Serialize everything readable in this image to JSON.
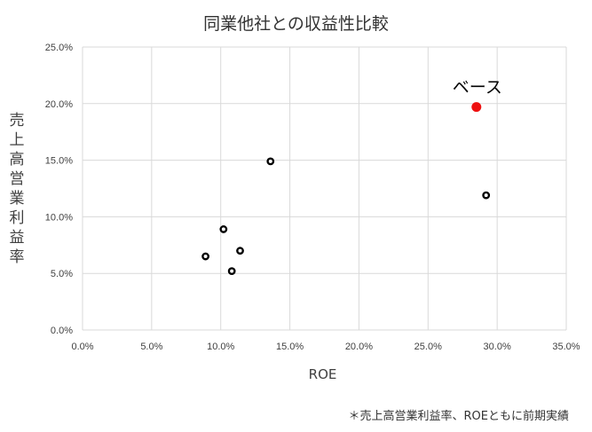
{
  "chart_data": {
    "type": "scatter",
    "title": "同業他社との収益性比較",
    "xlabel": "ROE",
    "ylabel": "売上高営業利益率",
    "xlim": [
      0,
      35
    ],
    "ylim": [
      0,
      25
    ],
    "xticks": [
      0,
      5,
      10,
      15,
      20,
      25,
      30,
      35
    ],
    "yticks": [
      0,
      5,
      10,
      15,
      20,
      25
    ],
    "xtick_labels": [
      "0.0%",
      "5.0%",
      "10.0%",
      "15.0%",
      "20.0%",
      "25.0%",
      "30.0%",
      "35.0%"
    ],
    "ytick_labels": [
      "0.0%",
      "5.0%",
      "10.0%",
      "15.0%",
      "20.0%",
      "25.0%"
    ],
    "grid": true,
    "series": [
      {
        "points": [
          {
            "x": 8.9,
            "y": 6.5
          },
          {
            "x": 10.2,
            "y": 8.9
          },
          {
            "x": 10.8,
            "y": 5.2
          },
          {
            "x": 11.4,
            "y": 7.0
          },
          {
            "x": 13.6,
            "y": 14.9
          },
          {
            "x": 29.2,
            "y": 11.9
          }
        ],
        "color": "#000000"
      },
      {
        "points": [
          {
            "x": 28.5,
            "y": 19.7
          }
        ],
        "color": "#ee1111",
        "label": "ベース"
      }
    ],
    "footnote": "＊売上高営業利益率、ROEともに前期実績"
  }
}
